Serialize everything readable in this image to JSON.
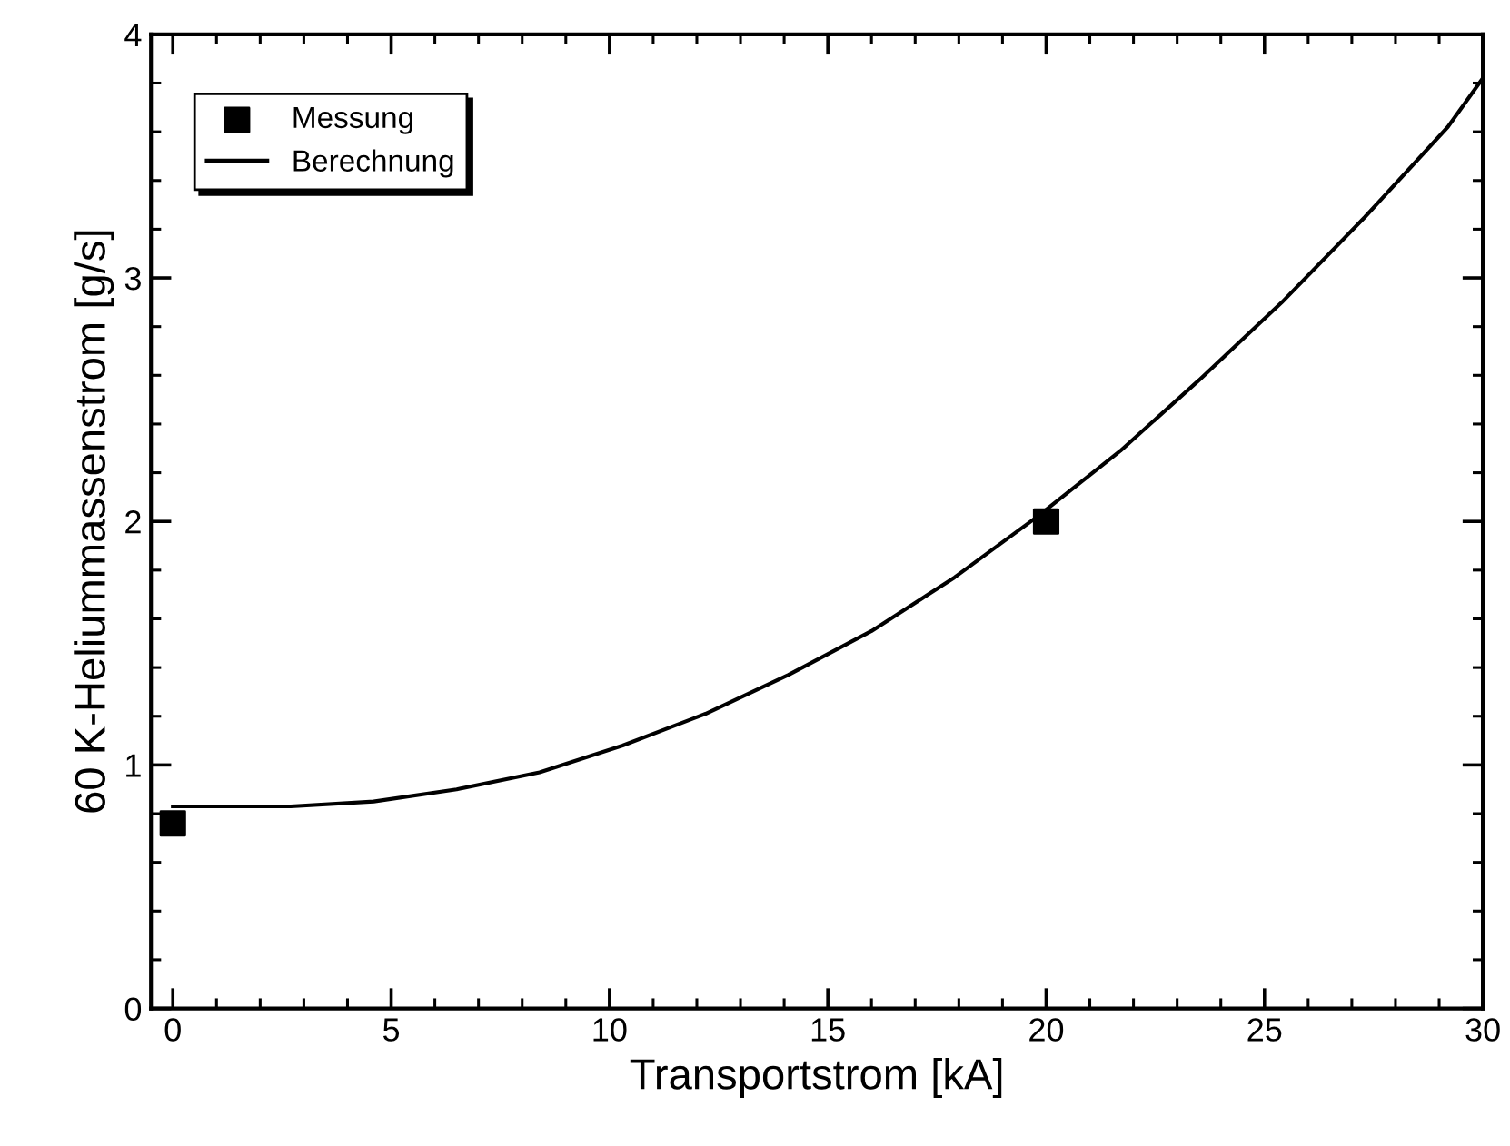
{
  "chart_data": {
    "type": "line",
    "xlabel": "Transportstrom [kA]",
    "ylabel": "60 K-Heliummassenstrom [g/s]",
    "xlim": [
      -0.5,
      30
    ],
    "xticks": [
      0,
      5,
      10,
      15,
      20,
      25,
      30
    ],
    "ylim": [
      0,
      4
    ],
    "yticks": [
      0,
      1,
      2,
      3,
      4
    ],
    "grid": false,
    "legend": "top left",
    "series": [
      {
        "name": "Messung",
        "type": "scatter",
        "marker": "square",
        "color": "#000000",
        "x": [
          0,
          20
        ],
        "values": [
          0.76,
          2.0
        ]
      },
      {
        "name": "Berechnung",
        "marker": "none",
        "line_style": "solid",
        "color": "#000000",
        "x": [
          0,
          2.7,
          4.6,
          6.5,
          8.4,
          10.3,
          12.2,
          14.1,
          16,
          17.9,
          19.8,
          21.7,
          23.5,
          25.4,
          27.3,
          29.2,
          30
        ],
        "values": [
          0.83,
          0.83,
          0.85,
          0.9,
          0.97,
          1.08,
          1.21,
          1.37,
          1.55,
          1.77,
          2.02,
          2.29,
          2.58,
          2.9,
          3.25,
          3.62,
          3.82
        ]
      }
    ]
  }
}
